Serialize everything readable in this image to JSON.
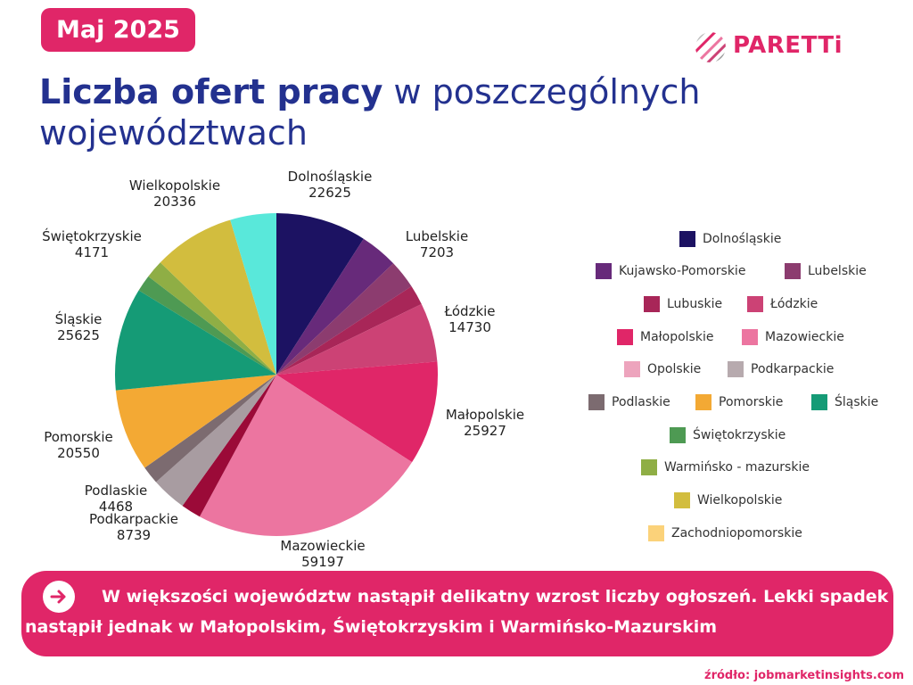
{
  "badge": "Maj 2025",
  "logo": {
    "text": "PARETTi"
  },
  "title": {
    "bold": "Liczba ofert pracy",
    "rest": " w poszczególnych województwach"
  },
  "chart_data": {
    "type": "pie",
    "slices": [
      {
        "name": "Dolnośląskie",
        "value": 22625,
        "color": "#1c1262",
        "label": "22625"
      },
      {
        "name": "Kujawsko-Pomorskie",
        "value": 9500,
        "color": "#672a7a",
        "label": null
      },
      {
        "name": "Lubelskie",
        "value": 7203,
        "color": "#8c3c6f",
        "label": "7203"
      },
      {
        "name": "Lubuskie",
        "value": 5000,
        "color": "#a82658",
        "label": null
      },
      {
        "name": "Łódzkie",
        "value": 14730,
        "color": "#cc4275",
        "label": "14730"
      },
      {
        "name": "Małopolskie",
        "value": 25927,
        "color": "#e02668",
        "label": "25927"
      },
      {
        "name": "Mazowieckie",
        "value": 59197,
        "color": "#ec75a0",
        "label": "59197"
      },
      {
        "name": "Opolskie",
        "value": 5000,
        "color": "#9b0a38",
        "label": null
      },
      {
        "name": "Podkarpackie",
        "value": 8739,
        "color": "#a89ca1",
        "label": "8739"
      },
      {
        "name": "Podlaskie",
        "value": 4468,
        "color": "#7c6b70",
        "label": "4468"
      },
      {
        "name": "Pomorskie",
        "value": 20550,
        "color": "#f3a934",
        "label": "20550"
      },
      {
        "name": "Śląskie",
        "value": 25625,
        "color": "#159b76",
        "label": "25625"
      },
      {
        "name": "Świętokrzyskie",
        "value": 4171,
        "color": "#4e9a53",
        "label": "4171"
      },
      {
        "name": "Warmińsko - mazurskie",
        "value": 4500,
        "color": "#8fae45",
        "label": null
      },
      {
        "name": "Wielkopolskie",
        "value": 20336,
        "color": "#d2bd3e",
        "label": "20336"
      },
      {
        "name": "Zachodniopomorskie",
        "value": 11500,
        "color": "#59e8da",
        "label": null
      }
    ]
  },
  "legend": [
    {
      "label": "Dolnośląskie",
      "color": "#1c1262"
    },
    {
      "label": "Kujawsko-Pomorskie",
      "color": "#672a7a"
    },
    {
      "label": "Lubelskie",
      "color": "#8c3c6f"
    },
    {
      "label": "Lubuskie",
      "color": "#a82658"
    },
    {
      "label": "Łódzkie",
      "color": "#cc4275"
    },
    {
      "label": "Małopolskie",
      "color": "#e02668"
    },
    {
      "label": "Mazowieckie",
      "color": "#ec75a0"
    },
    {
      "label": "Opolskie",
      "color": "#eda4bd"
    },
    {
      "label": "Podkarpackie",
      "color": "#b7aaae"
    },
    {
      "label": "Podlaskie",
      "color": "#7c6b70"
    },
    {
      "label": "Pomorskie",
      "color": "#f3a934"
    },
    {
      "label": "Śląskie",
      "color": "#159b76"
    },
    {
      "label": "Świętokrzyskie",
      "color": "#4e9a53"
    },
    {
      "label": "Warmińsko - mazurskie",
      "color": "#8fae45"
    },
    {
      "label": "Wielkopolskie",
      "color": "#d2bd3e"
    },
    {
      "label": "Zachodniopomorskie",
      "color": "#fbd27a"
    }
  ],
  "banner": {
    "text": "W większości województw nastąpił delikatny wzrost liczby ogłoszeń. Lekki spadek nastąpił jednak w Małopolskim, Świętokrzyskim i Warmińsko-Mazurskim"
  },
  "source": "źródło: jobmarketinsights.com"
}
